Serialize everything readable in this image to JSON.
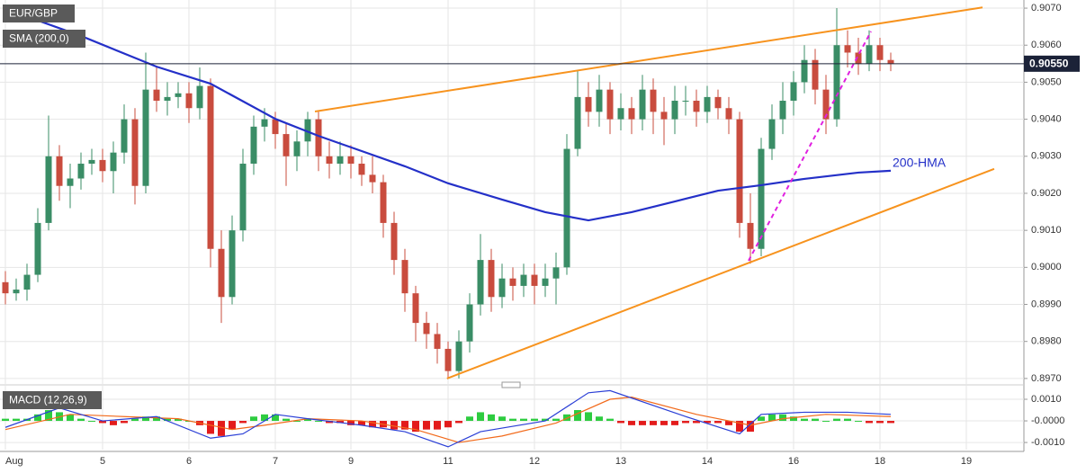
{
  "chart_data": [
    {
      "type": "candlestick",
      "symbol": "EUR/GBP",
      "indicator": "SMA (200,0)",
      "categories": [
        "Aug",
        null,
        null,
        null,
        null,
        null,
        null,
        null,
        null,
        "5",
        null,
        null,
        null,
        null,
        null,
        null,
        null,
        "6",
        null,
        null,
        null,
        null,
        null,
        null,
        null,
        "7",
        null,
        null,
        null,
        null,
        null,
        null,
        "9",
        null,
        null,
        null,
        null,
        null,
        null,
        null,
        null,
        "11",
        null,
        null,
        null,
        null,
        null,
        null,
        null,
        "12",
        null,
        null,
        null,
        null,
        null,
        null,
        null,
        "13",
        null,
        null,
        null,
        null,
        null,
        null,
        null,
        "14",
        null,
        null,
        null,
        null,
        null,
        null,
        null,
        "16",
        null,
        null,
        null,
        null,
        null,
        null,
        null,
        "18",
        null,
        null,
        null,
        null,
        null,
        null,
        null,
        "19",
        null,
        null,
        null,
        null,
        null
      ],
      "open": [
        0.8996,
        0.8993,
        0.8994,
        0.8998,
        0.9012,
        0.903,
        0.9022,
        0.9024,
        0.9028,
        0.9029,
        0.9026,
        0.9031,
        0.904,
        0.9022,
        0.9048,
        0.9045,
        0.9046,
        0.9047,
        0.9043,
        0.9049,
        0.9005,
        0.8992,
        0.901,
        0.9028,
        0.9038,
        0.904,
        0.9036,
        0.903,
        0.9034,
        0.904,
        0.903,
        0.9028,
        0.903,
        0.9028,
        0.9025,
        0.9023,
        0.9012,
        0.9002,
        0.8993,
        0.8985,
        0.8982,
        0.8978,
        0.8972,
        0.898,
        0.899,
        0.9002,
        0.8992,
        0.8997,
        0.8995,
        0.8998,
        0.8995,
        0.8997,
        0.9,
        0.9032,
        0.9046,
        0.9042,
        0.9048,
        0.904,
        0.9043,
        0.904,
        0.9048,
        0.9042,
        0.904,
        0.9045,
        0.9045,
        0.9042,
        0.9046,
        0.9043,
        0.904,
        0.9012,
        0.9005,
        0.9032,
        0.904,
        0.9045,
        0.905,
        0.9056,
        0.9048,
        0.904,
        0.906,
        0.9058,
        0.9055,
        0.906,
        0.9056,
        null,
        null,
        null,
        null,
        null,
        null,
        null,
        null,
        null,
        null,
        null,
        null
      ],
      "high": [
        0.8999,
        0.8997,
        0.9001,
        0.9016,
        0.9041,
        0.9033,
        0.9028,
        0.9031,
        0.9032,
        0.9032,
        0.9034,
        0.9044,
        0.9043,
        0.9058,
        0.9054,
        0.905,
        0.905,
        0.905,
        0.9054,
        0.9051,
        0.901,
        0.9014,
        0.9032,
        0.9041,
        0.9043,
        0.9042,
        0.9039,
        0.9037,
        0.9042,
        0.9042,
        0.9034,
        0.9034,
        0.9033,
        0.903,
        0.903,
        0.9025,
        0.9015,
        0.9005,
        0.8995,
        0.8988,
        0.8985,
        0.898,
        0.8983,
        0.8993,
        0.9009,
        0.9005,
        0.9001,
        0.9,
        0.9001,
        0.9001,
        0.9001,
        0.9004,
        0.9036,
        0.9053,
        0.905,
        0.9052,
        0.905,
        0.9047,
        0.9046,
        0.9052,
        0.9051,
        0.9046,
        0.9049,
        0.9049,
        0.9048,
        0.9049,
        0.9048,
        0.9046,
        0.9042,
        0.902,
        0.9035,
        0.9044,
        0.905,
        0.9053,
        0.906,
        0.9059,
        0.9052,
        0.907,
        0.9064,
        0.9062,
        0.9064,
        0.9062,
        0.9058,
        null,
        null,
        null,
        null,
        null,
        null,
        null,
        null,
        null,
        null,
        null,
        null
      ],
      "low": [
        0.899,
        0.8991,
        0.8991,
        0.8996,
        0.901,
        0.9018,
        0.9016,
        0.9021,
        0.9025,
        0.9023,
        0.902,
        0.9028,
        0.9017,
        0.902,
        0.9042,
        0.9041,
        0.9043,
        0.9039,
        0.904,
        0.9,
        0.8985,
        0.899,
        0.9007,
        0.9025,
        0.9034,
        0.9032,
        0.9022,
        0.9026,
        0.903,
        0.9026,
        0.9024,
        0.9025,
        0.9024,
        0.9022,
        0.902,
        0.9008,
        0.8998,
        0.8988,
        0.898,
        0.8978,
        0.8974,
        0.897,
        0.897,
        0.8977,
        0.8987,
        0.8988,
        0.8989,
        0.8991,
        0.8992,
        0.899,
        0.8992,
        0.899,
        0.8998,
        0.903,
        0.9038,
        0.9038,
        0.9036,
        0.9037,
        0.9036,
        0.9037,
        0.9036,
        0.9033,
        0.9036,
        0.9041,
        0.9038,
        0.9039,
        0.904,
        0.9036,
        0.9008,
        0.9001,
        0.9003,
        0.9029,
        0.9036,
        0.9041,
        0.9047,
        0.9044,
        0.9036,
        0.9038,
        0.9054,
        0.9052,
        0.9053,
        0.9053,
        0.9053,
        null,
        null,
        null,
        null,
        null,
        null,
        null,
        null,
        null,
        null,
        null,
        null
      ],
      "close": [
        0.8993,
        0.8994,
        0.8998,
        0.9012,
        0.903,
        0.9022,
        0.9024,
        0.9028,
        0.9029,
        0.9026,
        0.9031,
        0.904,
        0.9022,
        0.9048,
        0.9045,
        0.9046,
        0.9047,
        0.9043,
        0.9049,
        0.9005,
        0.8992,
        0.901,
        0.9028,
        0.9038,
        0.904,
        0.9036,
        0.903,
        0.9034,
        0.904,
        0.903,
        0.9028,
        0.903,
        0.9028,
        0.9025,
        0.9023,
        0.9012,
        0.9002,
        0.8993,
        0.8985,
        0.8982,
        0.8978,
        0.8972,
        0.898,
        0.899,
        0.9002,
        0.8992,
        0.8997,
        0.8995,
        0.8998,
        0.8995,
        0.8997,
        0.9,
        0.9032,
        0.9046,
        0.9042,
        0.9048,
        0.904,
        0.9043,
        0.904,
        0.9048,
        0.9042,
        0.904,
        0.9045,
        0.9045,
        0.9042,
        0.9046,
        0.9043,
        0.904,
        0.9012,
        0.9005,
        0.9032,
        0.904,
        0.9045,
        0.905,
        0.9056,
        0.9048,
        0.904,
        0.906,
        0.9058,
        0.9055,
        0.906,
        0.9056,
        0.9055,
        null,
        null,
        null,
        null,
        null,
        null,
        null,
        null,
        null,
        null,
        null,
        null
      ],
      "up_color": "#3a8d66",
      "down_color": "#c94c3e",
      "ylim": [
        0.8969,
        0.90722
      ],
      "yticks": [
        {
          "value": 0.897,
          "label": "0.8970"
        },
        {
          "value": 0.898,
          "label": "0.8980"
        },
        {
          "value": 0.899,
          "label": "0.8990"
        },
        {
          "value": 0.9,
          "label": "0.9000"
        },
        {
          "value": 0.901,
          "label": "0.9010"
        },
        {
          "value": 0.902,
          "label": "0.9020"
        },
        {
          "value": 0.903,
          "label": "0.9030"
        },
        {
          "value": 0.904,
          "label": "0.9040"
        },
        {
          "value": 0.905,
          "label": "0.9050"
        },
        {
          "value": 0.906,
          "label": "0.9060"
        },
        {
          "value": 0.907,
          "label": "0.9070"
        }
      ],
      "grid": true,
      "price_line": {
        "value": 0.9055,
        "label": "0.90550",
        "color": "#1b2238"
      },
      "overlays": [
        {
          "label": "200-HMA",
          "color": "#2430c8",
          "x": [
            0,
            7,
            14,
            19,
            25,
            29,
            33,
            37,
            41,
            46,
            50,
            54,
            58,
            62,
            66,
            70,
            74,
            79,
            82
          ],
          "values": [
            0.90698,
            0.90625,
            0.90542,
            0.90496,
            0.90401,
            0.90355,
            0.90314,
            0.90273,
            0.90227,
            0.90183,
            0.90149,
            0.90127,
            0.90149,
            0.90178,
            0.90207,
            0.90222,
            0.90239,
            0.90256,
            0.90261
          ]
        }
      ],
      "trendlines": [
        {
          "color": "#f7931e",
          "dashed": false,
          "x": [
            28.67,
            90.5
          ],
          "values": [
            0.90421,
            0.90702
          ]
        },
        {
          "color": "#f7931e",
          "dashed": false,
          "x": [
            40.9,
            91.58
          ],
          "values": [
            0.897,
            0.90266
          ]
        },
        {
          "color": "#e020e0",
          "dashed": true,
          "x": [
            68.83,
            80.17
          ],
          "values": [
            0.90018,
            0.90637
          ]
        }
      ]
    },
    {
      "type": "macd",
      "title": "MACD (12,26,9)",
      "histogram": [
        0.0001,
        0.0001,
        0.0001,
        0.0003,
        0.0005,
        0.0004,
        0.0003,
        0.0001,
        0.0,
        -0.0001,
        -0.0002,
        -0.0001,
        0.0001,
        0.0002,
        0.0002,
        0.0001,
        0.0001,
        0.0,
        -0.0002,
        -0.0006,
        -0.0007,
        -0.0004,
        -0.0001,
        0.0002,
        0.0003,
        0.0003,
        0.0001,
        0.0,
        0.0001,
        0.0,
        -0.0001,
        -0.0001,
        -0.0002,
        -0.0002,
        -0.0003,
        -0.0003,
        -0.0004,
        -0.0004,
        -0.0005,
        -0.0004,
        -0.0004,
        -0.0003,
        -0.0001,
        0.0002,
        0.0004,
        0.0003,
        0.0002,
        0.0001,
        0.0001,
        0.0001,
        0.0001,
        0.0001,
        0.0003,
        0.0005,
        0.0004,
        0.0002,
        0.0001,
        -0.0001,
        -0.0002,
        -0.0002,
        -0.0002,
        -0.0002,
        -0.0002,
        -0.0001,
        -0.0001,
        -0.0001,
        -0.0001,
        -0.0002,
        -0.0005,
        -0.0005,
        0.0002,
        0.0003,
        0.0003,
        0.0002,
        0.0001,
        0.0001,
        0.0,
        0.0001,
        0.0001,
        0.0,
        -0.0001,
        -0.0001,
        -0.0001,
        null,
        null,
        null,
        null,
        null,
        null,
        null,
        null,
        null,
        null,
        null,
        null
      ],
      "positive_color": "#2ecc40",
      "negative_color": "#e31b1b",
      "macd": {
        "color": "#2b3fd6",
        "x": [
          0,
          5,
          9,
          14,
          19,
          22,
          25,
          28,
          33,
          37,
          41,
          44,
          50,
          54,
          56,
          63,
          68,
          70,
          74,
          78,
          82
        ],
        "values": [
          -0.0003,
          0.0006,
          0.0,
          0.0002,
          -0.0008,
          -0.0006,
          0.0003,
          0.0001,
          -0.0002,
          -0.0005,
          -0.0012,
          -0.0005,
          0.0,
          0.0013,
          0.0014,
          0.0002,
          -0.0006,
          0.0003,
          0.0004,
          0.0004,
          0.0003
        ]
      },
      "signal": {
        "color": "#f26a1b",
        "x": [
          0,
          6,
          11,
          16,
          21,
          24,
          28,
          33,
          38,
          42,
          46,
          51,
          56,
          58,
          64,
          69,
          72,
          76,
          82
        ],
        "values": [
          -0.0004,
          0.0003,
          0.0002,
          0.0001,
          -0.0004,
          -0.0002,
          0.0001,
          0.0,
          -0.0004,
          -0.001,
          -0.0007,
          -0.0001,
          0.001,
          0.0011,
          0.0003,
          -0.0002,
          0.0001,
          0.0003,
          0.0002
        ]
      },
      "ylim": [
        -0.00133,
        0.0015
      ],
      "yticks": [
        {
          "value": 0.001,
          "label": "0.0010"
        },
        {
          "value": 0,
          "label": "-0.0000"
        },
        {
          "value": -0.001,
          "label": "-0.0010"
        }
      ]
    }
  ]
}
